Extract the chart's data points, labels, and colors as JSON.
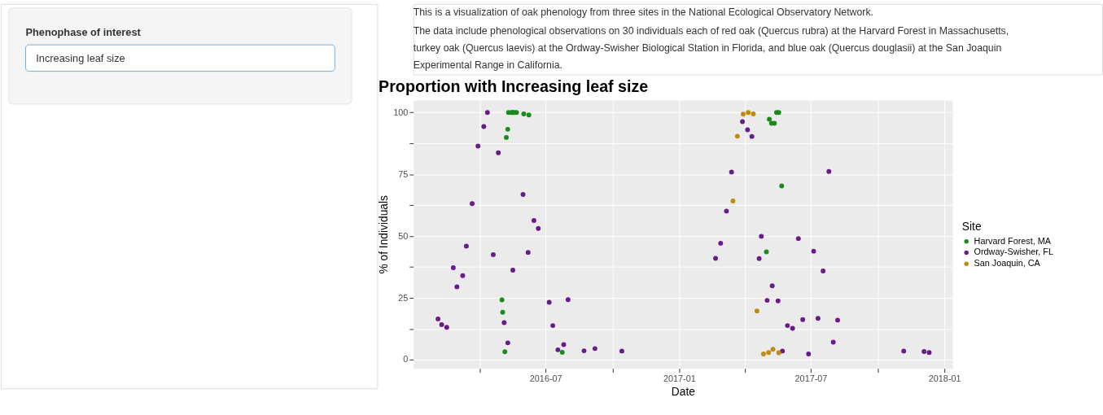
{
  "chart_data": {
    "type": "scatter",
    "title": "Proportion with Increasing leaf size",
    "xlabel": "Date",
    "ylabel": "% of Individuals",
    "legend_title": "Site",
    "legend": "right",
    "grid": true,
    "marker": "circle",
    "annotations": [
      "Phenophase of interest",
      "Increasing leaf size",
      "This is a visualization of oak phenology from three sites in the National Ecological Observatory Network.",
      "The data include phenological observations on 30 individuals each of red oak (Quercus rubra) at the Harvard Forest in Massachusetts, turkey oak (Quercus laevis) at the Ordway-Swisher Biological Station in Florida, and blue oak (Quercus douglasii) at the San Joaquin Experimental Range in California."
    ],
    "xlim": [
      "2016-01-01",
      "2018-01-12"
    ],
    "ylim": [
      -3.5,
      105
    ],
    "xticks": [
      {
        "value": "2016-04",
        "label": null
      },
      "2016-07",
      {
        "value": "2016-10",
        "label": null
      },
      "2017-01",
      {
        "value": "2017-04",
        "label": null
      },
      "2017-07",
      {
        "value": "2017-10",
        "label": null
      },
      "2018-01"
    ],
    "yticks": [
      0,
      {
        "value": 12.5,
        "label": null
      },
      25,
      {
        "value": 37.5,
        "label": null
      },
      50,
      {
        "value": 62.5,
        "label": null
      },
      75,
      {
        "value": 87.5,
        "label": null
      },
      100
    ],
    "series": [
      {
        "name": "Harvard Forest, MA",
        "color": "#1a8a1a",
        "x": [
          "2016-05-11",
          "2016-05-15",
          "2016-05-17",
          "2016-05-19",
          "2016-05-22",
          "2016-06-01",
          "2016-06-08",
          "2016-05-10",
          "2016-05-08",
          "2016-05-02",
          "2016-05-03",
          "2016-05-06",
          "2016-07-24",
          "2017-05-15",
          "2017-05-18",
          "2017-05-05",
          "2017-05-08",
          "2017-05-12",
          "2017-05-22",
          "2017-05-01"
        ],
        "values": [
          100,
          100,
          100,
          100,
          100,
          99.4,
          99,
          93.2,
          89.9,
          24.2,
          19.2,
          3.2,
          3,
          100,
          100,
          97.3,
          95.6,
          95.6,
          70.3,
          43.6
        ]
      },
      {
        "name": "Ordway-Swisher, FL",
        "color": "#6a1b8a",
        "x": [
          "2016-04-12",
          "2016-04-07",
          "2016-03-30",
          "2016-04-27",
          "2016-05-31",
          "2016-03-22",
          "2016-06-15",
          "2016-06-21",
          "2016-03-14",
          "2016-04-20",
          "2016-06-07",
          "2016-02-25",
          "2016-03-09",
          "2016-05-17",
          "2016-03-01",
          "2016-07-06",
          "2016-08-01",
          "2016-02-04",
          "2016-02-09",
          "2016-02-16",
          "2016-05-05",
          "2016-07-11",
          "2016-05-10",
          "2016-07-26",
          "2016-07-18",
          "2016-08-23",
          "2016-09-07",
          "2016-10-14",
          "2017-03-29",
          "2017-04-05",
          "2017-04-11",
          "2017-03-14",
          "2017-07-26",
          "2017-03-07",
          "2017-04-24",
          "2017-06-14",
          "2017-02-27",
          "2017-02-20",
          "2017-04-21",
          "2017-07-05",
          "2017-07-18",
          "2017-05-09",
          "2017-05-02",
          "2017-05-17",
          "2017-06-20",
          "2017-07-11",
          "2017-08-07",
          "2017-05-30",
          "2017-06-06",
          "2017-08-01",
          "2017-05-23",
          "2017-06-28",
          "2017-11-06",
          "2017-12-04",
          "2017-12-11"
        ],
        "values": [
          100,
          94.3,
          86.4,
          83.7,
          66.8,
          63.1,
          56.3,
          53.1,
          45.9,
          42.5,
          43.4,
          37.2,
          34,
          36.2,
          29.5,
          23.2,
          24.3,
          16.5,
          14.2,
          13.1,
          15,
          13.8,
          6.8,
          6.1,
          4,
          3.6,
          4.5,
          3.5,
          96.3,
          93,
          90.3,
          75.9,
          76.1,
          60.1,
          49.9,
          49,
          47.1,
          41,
          40.9,
          43.9,
          35.9,
          29.9,
          24,
          23.8,
          16.2,
          16.7,
          16,
          13.8,
          12.7,
          7.1,
          3.5,
          2.3,
          3.5,
          3.3,
          2.9
        ]
      },
      {
        "name": "San Joaquin, CA",
        "color": "#c08a10",
        "x": [
          "2017-03-30",
          "2017-04-06",
          "2017-04-13",
          "2017-03-22",
          "2017-03-16",
          "2017-04-18",
          "2017-04-27",
          "2017-05-04",
          "2017-05-10",
          "2017-05-18"
        ],
        "values": [
          99.3,
          100,
          99.4,
          90.4,
          64.2,
          19.7,
          2.3,
          2.9,
          4.2,
          2.8
        ]
      }
    ]
  }
}
